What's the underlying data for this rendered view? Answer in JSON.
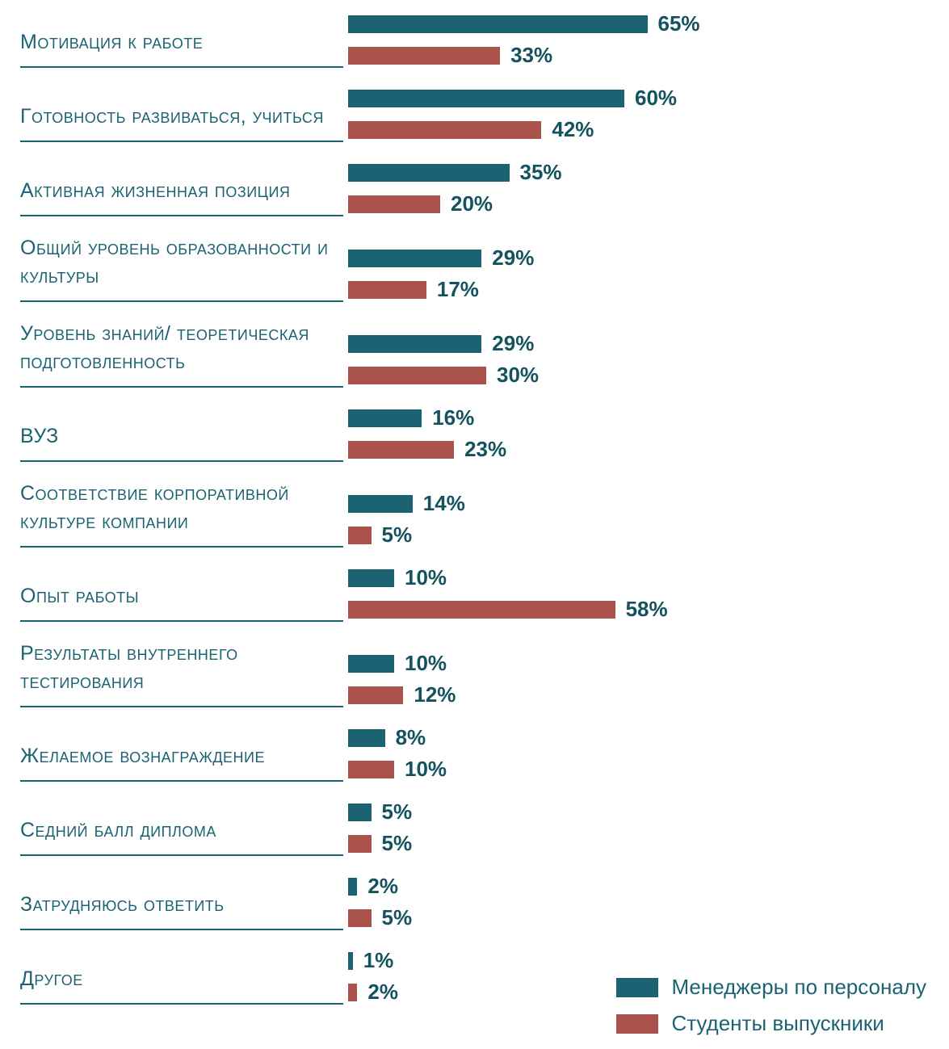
{
  "chart_data": {
    "type": "bar",
    "orientation": "horizontal",
    "title": "",
    "xlabel": "",
    "ylabel": "",
    "xlim": [
      0,
      70
    ],
    "grid": false,
    "legend_position": "bottom-right",
    "value_suffix": "%",
    "categories": [
      "Мотивация к работе",
      "Готовность развиваться, учиться",
      "Активная жизненная позиция",
      "Общий уровень образованности и культуры",
      "Уровень знаний/ теоретическая подготовленность",
      "ВУЗ",
      "Соответствие корпоративной культуре компании",
      "Опыт работы",
      "Результаты внутреннего тестирования",
      "Желаемое вознаграждение",
      "Седний балл диплома",
      "Затрудняюсь ответить",
      "Другое"
    ],
    "series": [
      {
        "name": "Менеджеры по персоналу",
        "color": "#1b6372",
        "values": [
          65,
          60,
          35,
          29,
          29,
          16,
          14,
          10,
          10,
          8,
          5,
          2,
          1
        ]
      },
      {
        "name": "Студенты выпускники",
        "color": "#aa534c",
        "values": [
          33,
          42,
          20,
          17,
          30,
          23,
          5,
          58,
          12,
          10,
          5,
          5,
          2
        ]
      }
    ]
  },
  "colors": {
    "bar_hr": "#1b6372",
    "bar_students": "#aa534c",
    "label_text": "#1b6372",
    "value_text": "#14525f",
    "underline": "#1b6372"
  }
}
